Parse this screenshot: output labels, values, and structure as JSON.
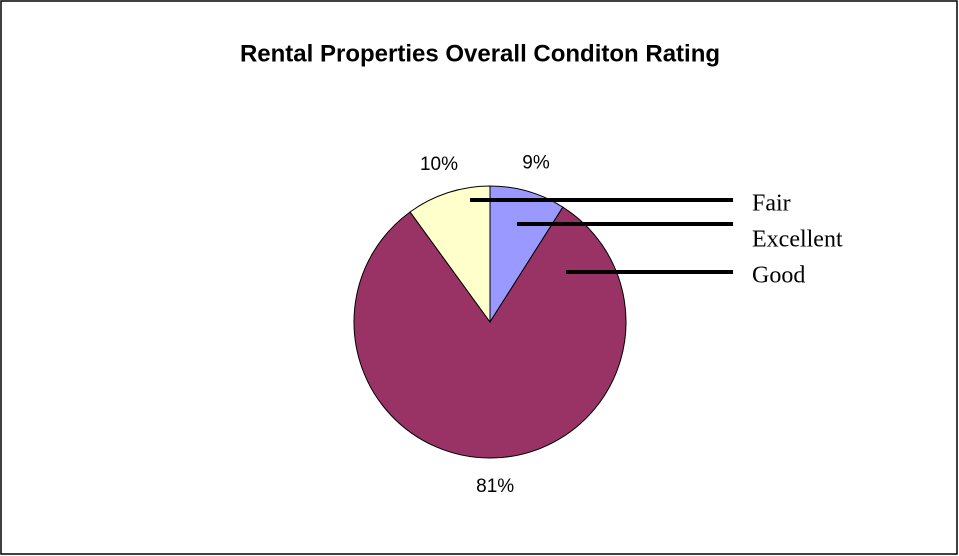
{
  "chart_data": {
    "type": "pie",
    "title": "Rental Properties Overall Conditon Rating",
    "categories": [
      "Excellent",
      "Good",
      "Fair"
    ],
    "values": [
      9,
      81,
      10
    ],
    "value_labels": [
      "9%",
      "81%",
      "10%"
    ],
    "colors": [
      "#9999ff",
      "#993366",
      "#ffffcc"
    ]
  }
}
